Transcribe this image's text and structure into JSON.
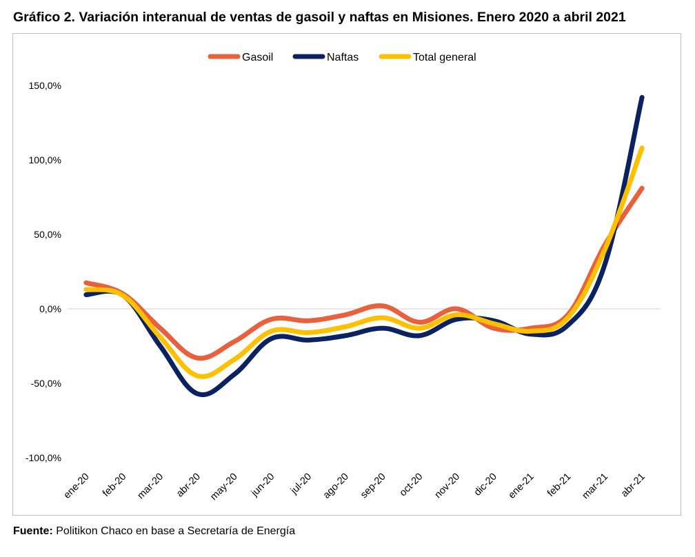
{
  "chart_data": {
    "type": "line",
    "title": "Gráfico 2. Variación interanual de ventas de gasoil y naftas en Misiones. Enero 2020 a abril 2021",
    "categories": [
      "ene-20",
      "feb-20",
      "mar-20",
      "abr-20",
      "may-20",
      "jun-20",
      "jul-20",
      "ago-20",
      "sep-20",
      "oct-20",
      "nov-20",
      "dic-20",
      "ene-21",
      "feb-21",
      "mar-21",
      "abr-21"
    ],
    "series": [
      {
        "name": "Gasoil",
        "color": "#e8603c",
        "values": [
          17.5,
          10.0,
          -13.0,
          -33.0,
          -22.0,
          -7.0,
          -8.0,
          -4.0,
          2.0,
          -9.0,
          0.0,
          -13.0,
          -13.0,
          -4.0,
          43.0,
          81.0
        ]
      },
      {
        "name": "Naftas",
        "color": "#0b2260",
        "values": [
          9.5,
          9.0,
          -25.0,
          -57.0,
          -44.0,
          -20.0,
          -21.0,
          -18.0,
          -13.0,
          -18.0,
          -7.0,
          -8.0,
          -17.0,
          -11.0,
          30.0,
          142.0
        ]
      },
      {
        "name": "Total general",
        "color": "#ffc000",
        "values": [
          13.0,
          9.0,
          -19.0,
          -45.0,
          -34.0,
          -15.0,
          -16.0,
          -12.0,
          -6.0,
          -13.0,
          -4.0,
          -10.0,
          -15.0,
          -6.0,
          40.0,
          108.0
        ]
      }
    ],
    "yticks": [
      "150,0%",
      "100,0%",
      "50,0%",
      "0,0%",
      "-50,0%",
      "-100,0%"
    ],
    "ytick_values": [
      150,
      100,
      50,
      0,
      -50,
      -100
    ],
    "ylim": [
      -100,
      150
    ],
    "legend_position": "top-center",
    "grid": false
  },
  "header": {
    "title": "Gráfico 2. Variación interanual de ventas de gasoil y naftas en Misiones. Enero 2020 a abril 2021"
  },
  "footer": {
    "source_label": "Fuente:",
    "source_text": " Politikon Chaco en base a Secretaría de Energía"
  }
}
